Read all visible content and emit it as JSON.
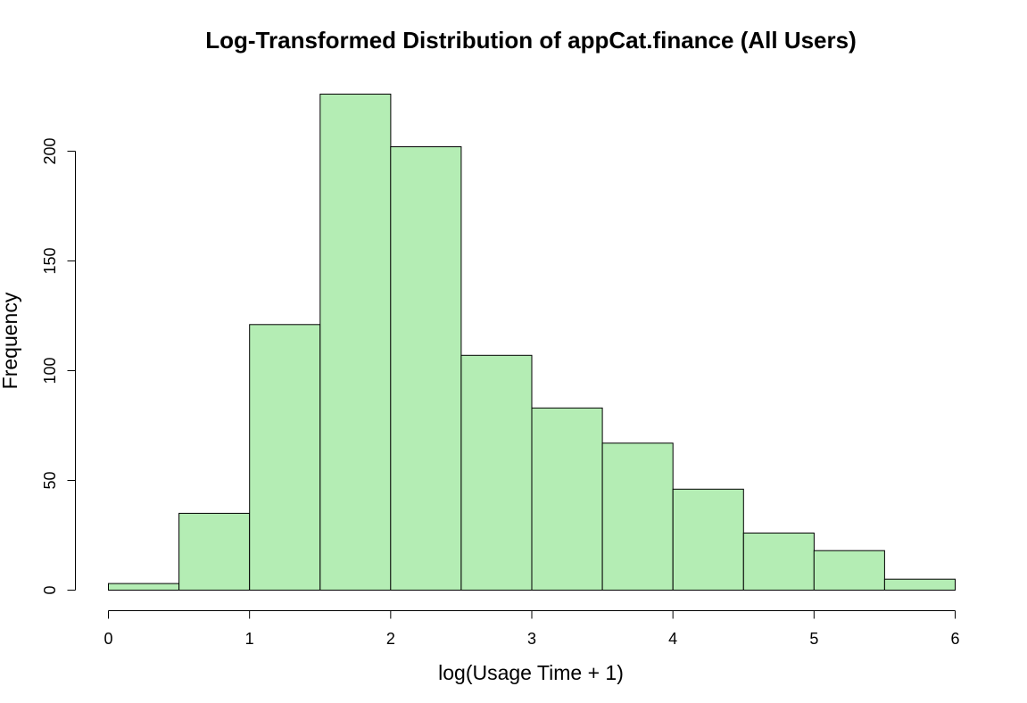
{
  "chart_data": {
    "type": "bar",
    "title": "Log-Transformed Distribution of appCat.finance (All Users)",
    "xlabel": "log(Usage Time + 1)",
    "ylabel": "Frequency",
    "bin_edges": [
      0,
      0.5,
      1,
      1.5,
      2,
      2.5,
      3,
      3.5,
      4,
      4.5,
      5,
      5.5,
      6
    ],
    "values": [
      3,
      35,
      121,
      226,
      202,
      107,
      83,
      67,
      46,
      26,
      18,
      5
    ],
    "xlim": [
      0,
      6
    ],
    "ylim": [
      0,
      226
    ],
    "x_ticks": [
      0,
      1,
      2,
      3,
      4,
      5,
      6
    ],
    "y_ticks": [
      0,
      50,
      100,
      150,
      200
    ],
    "bar_color": "#b4edb4",
    "grid": false,
    "legend": "none"
  }
}
